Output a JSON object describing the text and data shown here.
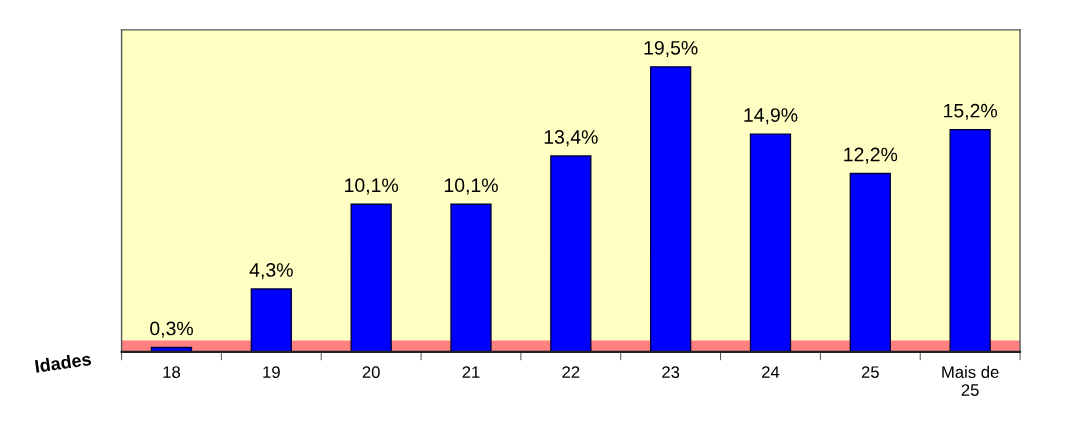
{
  "chart_data": {
    "type": "bar",
    "xlabel": "Idades",
    "categories": [
      "18",
      "19",
      "20",
      "21",
      "22",
      "23",
      "24",
      "25",
      "Mais de 25"
    ],
    "values": [
      0.3,
      4.3,
      10.1,
      10.1,
      13.4,
      19.5,
      14.9,
      12.2,
      15.2
    ],
    "value_labels": [
      "0,3%",
      "4,3%",
      "10,1%",
      "10,1%",
      "13,4%",
      "19,5%",
      "14,9%",
      "12,2%",
      "15,2%"
    ],
    "color": "#0000ff",
    "grid": false,
    "legend": false
  }
}
